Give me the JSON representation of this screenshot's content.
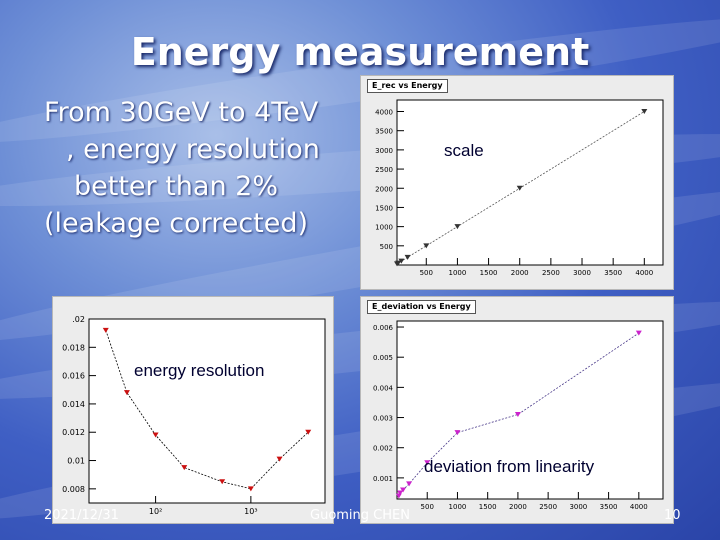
{
  "slide": {
    "title": "Energy measurement",
    "body_lines": [
      "From 30GeV to 4TeV",
      ", energy resolution",
      "better than 2%",
      "(leakage corrected)"
    ],
    "footer_date": "2021/12/31",
    "footer_author": "Guoming CHEN",
    "footer_page": "10"
  },
  "annotations": {
    "scale": "scale",
    "resolution": "energy resolution",
    "deviation": "deviation from linearity"
  },
  "chart_data": [
    {
      "type": "scatter",
      "title": "E_rec vs Energy",
      "xlim": [
        30,
        4300
      ],
      "ylim": [
        0,
        4300
      ],
      "xticks": [
        500,
        1000,
        1500,
        2000,
        2500,
        3000,
        3500,
        4000
      ],
      "xtick_labels": [
        "500",
        "1000",
        "1500",
        "2000",
        "2500",
        "3000",
        "3500",
        "4000"
      ],
      "yticks": [
        500,
        1000,
        1500,
        2000,
        2500,
        3000,
        3500,
        4000
      ],
      "ytick_labels": [
        "500",
        "1000",
        "1500",
        "2000",
        "2500",
        "3000",
        "3500",
        "4000"
      ],
      "x": [
        30,
        50,
        100,
        200,
        500,
        1000,
        2000,
        4000
      ],
      "y": [
        30,
        50,
        100,
        200,
        500,
        1000,
        2000,
        4000
      ]
    },
    {
      "type": "scatter",
      "title": "",
      "xscale": "log",
      "xlim": [
        20,
        6000
      ],
      "ylim": [
        0.007,
        0.02
      ],
      "yticks": [
        0.008,
        0.01,
        0.012,
        0.014,
        0.016,
        0.018,
        0.02
      ],
      "ytick_labels": [
        "0.008",
        "0.01",
        "0.012",
        "0.014",
        "0.016",
        "0.018",
        ".02"
      ],
      "xticks": [
        100,
        1000
      ],
      "xtick_labels": [
        "10²",
        "10³"
      ],
      "x": [
        30,
        50,
        100,
        200,
        500,
        1000,
        2000,
        4000
      ],
      "y": [
        0.0192,
        0.0148,
        0.0118,
        0.0095,
        0.0085,
        0.008,
        0.0101,
        0.012
      ]
    },
    {
      "type": "scatter",
      "title": "E_deviation vs Energy",
      "xlim": [
        0,
        4400
      ],
      "ylim": [
        0.0003,
        0.0062
      ],
      "xticks": [
        500,
        1000,
        1500,
        2000,
        2500,
        3000,
        3500,
        4000
      ],
      "xtick_labels": [
        "500",
        "1000",
        "1500",
        "2000",
        "2500",
        "3000",
        "3500",
        "4000"
      ],
      "yticks": [
        0.001,
        0.002,
        0.003,
        0.004,
        0.005,
        0.006
      ],
      "ytick_labels": [
        "0.001",
        "0.002",
        "0.003",
        "0.004",
        "0.005",
        "0.006"
      ],
      "x": [
        30,
        50,
        100,
        200,
        500,
        1000,
        2000,
        4000
      ],
      "y": [
        0.0004,
        0.0005,
        0.0006,
        0.0008,
        0.0015,
        0.0025,
        0.0031,
        0.0058
      ]
    }
  ]
}
